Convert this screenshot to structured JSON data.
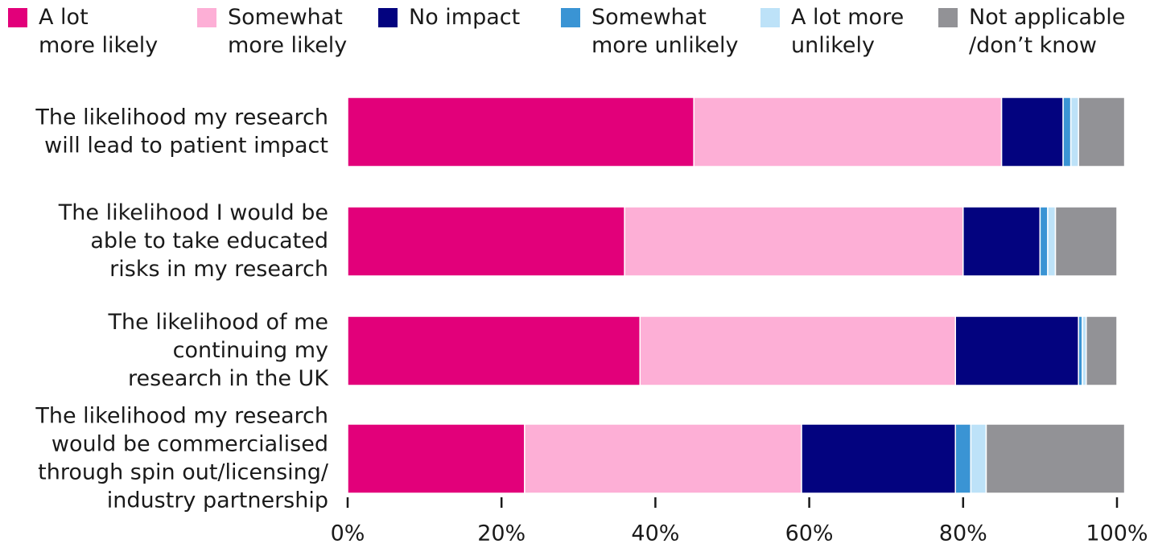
{
  "chart_data": {
    "type": "stacked-barh",
    "categories": [
      "The likelihood my research\nwill lead to patient impact",
      "The likelihood I would be\nable to take educated\nrisks in my research",
      "The likelihood of me\ncontinuing my\nresearch in the UK",
      "The likelihood my research\nwould be commercialised\nthrough spin out/licensing/\nindustry partnership"
    ],
    "series": [
      {
        "name": "A lot\nmore likely",
        "color": "#e2007a",
        "values": [
          45,
          36,
          38,
          23
        ]
      },
      {
        "name": "Somewhat\nmore likely",
        "color": "#fdafd6",
        "values": [
          40,
          44,
          41,
          36
        ]
      },
      {
        "name": "No impact",
        "color": "#03037f",
        "values": [
          8,
          10,
          16,
          20
        ]
      },
      {
        "name": "Somewhat\nmore unlikely",
        "color": "#3a94d4",
        "values": [
          1,
          1,
          0.5,
          2
        ]
      },
      {
        "name": "A lot more\nunlikely",
        "color": "#bde2f8",
        "values": [
          1,
          1,
          0.5,
          2
        ]
      },
      {
        "name": "Not applicable\n/don’t know",
        "color": "#929296",
        "values": [
          6,
          8,
          4,
          18
        ]
      }
    ],
    "xlim": [
      0,
      100
    ],
    "xticks": [
      {
        "value": 0,
        "label": "0%"
      },
      {
        "value": 20,
        "label": "20%"
      },
      {
        "value": 40,
        "label": "40%"
      },
      {
        "value": 60,
        "label": "60%"
      },
      {
        "value": 80,
        "label": "80%"
      },
      {
        "value": 100,
        "label": "100%"
      }
    ],
    "legend": "top"
  }
}
